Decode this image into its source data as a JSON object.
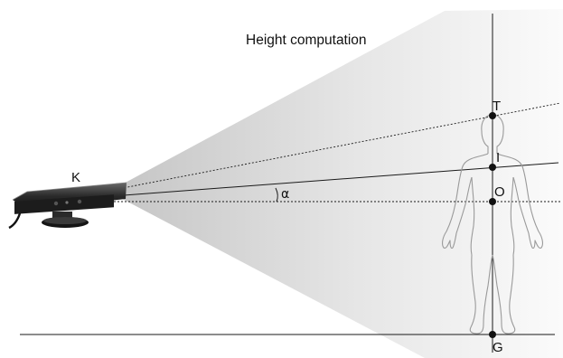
{
  "title": "Height computation",
  "labels": {
    "sensor": "K",
    "top": "T",
    "intersection": "I",
    "origin": "O",
    "ground": "G",
    "angle": "α"
  },
  "colors": {
    "line": "#1a1a1a",
    "point": "#111111",
    "fov_inner": "#bdbdbd",
    "fov_outer": "#ffffff",
    "body_outline": "#9a9a9a"
  },
  "icons": [
    "kinect-sensor-icon",
    "human-figure-icon"
  ]
}
